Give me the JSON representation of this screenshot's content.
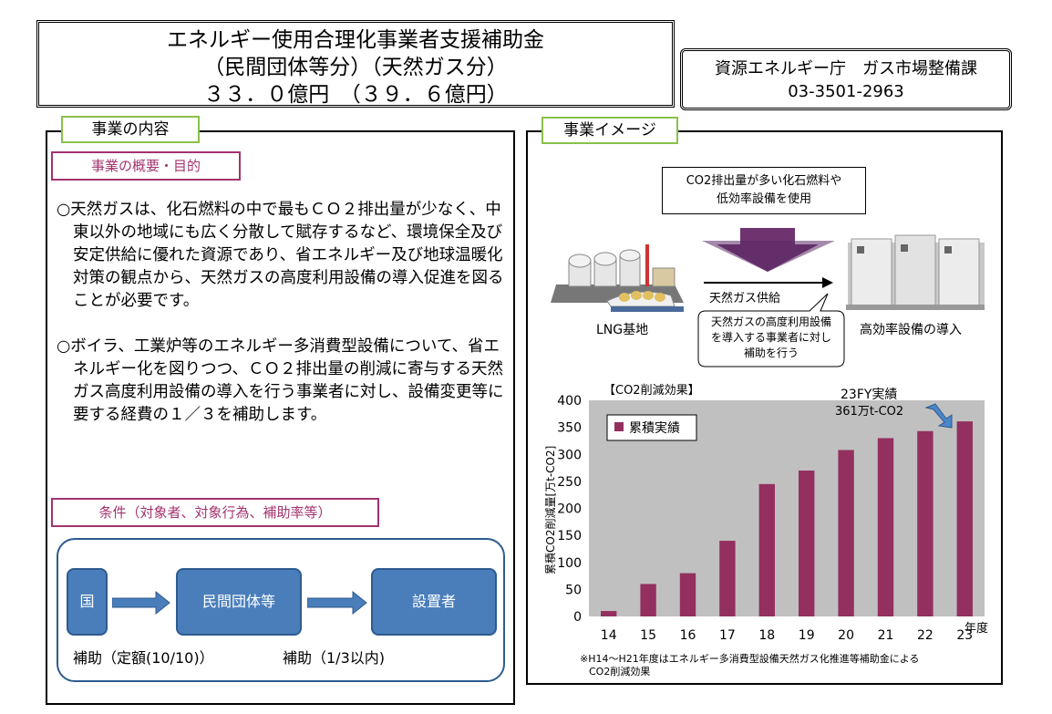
{
  "header": {
    "title_line1": "エネルギー使用合理化事業者支援補助金",
    "title_line2": "（民間団体等分）（天然ガス分）",
    "title_line3": "３３．０億円　（３９．６億円）",
    "contact_line1": "資源エネルギー庁　ガス市場整備課",
    "contact_line2": "03-3501-2963"
  },
  "left": {
    "section_label": "事業の内容",
    "overview_label": "事業の概要・目的",
    "paragraph1": "○天然ガスは、化石燃料の中で最もＣＯ２排出量が少なく、中東以外の地域にも広く分散して賦存するなど、環境保全及び安定供給に優れた資源であり、省エネルギー及び地球温暖化対策の観点から、天然ガスの高度利用設備の導入促進を図ることが必要です。",
    "paragraph2": "○ボイラ、工業炉等のエネルギー多消費型設備について、省エネルギー化を図りつつ、ＣＯ２排出量の削減に寄与する天然ガス高度利用設備の導入を行う事業者に対し、設備変更等に要する経費の１／３を補助します。",
    "conditions_label": "条件（対象者、対象行為、補助率等）",
    "flow": {
      "box1": "国",
      "box2": "民間団体等",
      "box3": "設置者",
      "subsidy1": "補助（定額(10/10)）",
      "subsidy2": "補助（1/3以内)"
    }
  },
  "right": {
    "section_label": "事業イメージ",
    "callout_top_line1": "CO2排出量が多い化石燃料や",
    "callout_top_line2": "低効率設備を使用",
    "supply_label": "天然ガス供給",
    "lng_label": "LNG基地",
    "efficient_label": "高効率設備の導入",
    "callout_bottom_line1": "天然ガスの高度利用設備",
    "callout_bottom_line2": "を導入する事業者に対し",
    "callout_bottom_line3": "補助を行う",
    "chart_heading": "【CO2削減効果】",
    "footnote_line1": "※H14～H21年度はエネルギー多消費型設備天然ガス化推進等補助金による",
    "footnote_line2": "CO2削減効果"
  },
  "chart_data": {
    "type": "bar",
    "categories": [
      "14",
      "15",
      "16",
      "17",
      "18",
      "19",
      "20",
      "21",
      "22",
      "23"
    ],
    "series": [
      {
        "name": "累積実績",
        "values": [
          10,
          60,
          80,
          140,
          245,
          270,
          308,
          330,
          343,
          361
        ]
      }
    ],
    "xlabel": "年度",
    "ylabel": "累積CO2削減量[万t-CO2]",
    "ylim": [
      0,
      400
    ],
    "yticks": [
      0,
      50,
      100,
      150,
      200,
      250,
      300,
      350,
      400
    ],
    "annotation_line1": "23FY実績",
    "annotation_line2": "361万t-CO2",
    "legend_position": "top-left",
    "bar_color": "#93305f",
    "plot_bg": "#c0c0c0"
  }
}
